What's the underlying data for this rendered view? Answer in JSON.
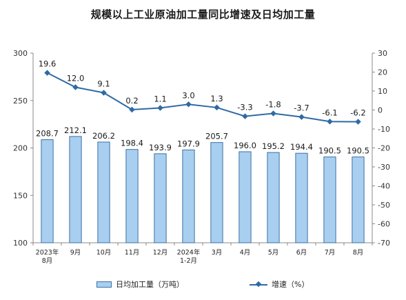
{
  "chart_data": {
    "type": "bar+line",
    "title": "规模以上工业原油加工量同比增速及日均加工量",
    "categories": [
      "2023年\n8月",
      "9月",
      "10月",
      "11月",
      "12月",
      "2024年\n1-2月",
      "3月",
      "4月",
      "5月",
      "6月",
      "7月",
      "8月"
    ],
    "series": [
      {
        "name": "日均加工量（万吨）",
        "type": "bar",
        "axis": "left",
        "values": [
          208.7,
          212.1,
          206.2,
          198.4,
          193.9,
          197.9,
          205.7,
          196.0,
          195.2,
          194.4,
          190.5,
          190.5
        ],
        "labels": [
          "208.7",
          "212.1",
          "206.2",
          "198.4",
          "193.9",
          "197.9",
          "205.7",
          "196.0",
          "195.2",
          "194.4",
          "190.5",
          "190.5"
        ],
        "color": "#a8cff0",
        "border": "#3b6fa3"
      },
      {
        "name": "增速（%）",
        "type": "line",
        "axis": "right",
        "values": [
          19.6,
          12.0,
          9.1,
          0.2,
          1.1,
          3.0,
          1.3,
          -3.3,
          -1.8,
          -3.7,
          -6.1,
          -6.2
        ],
        "labels": [
          "19.6",
          "12.0",
          "9.1",
          "0.2",
          "1.1",
          "3.0",
          "1.3",
          "-3.3",
          "-1.8",
          "-3.7",
          "-6.1",
          "-6.2"
        ],
        "color": "#2e6aa5"
      }
    ],
    "left_axis": {
      "ylim": [
        100,
        300
      ],
      "ticks": [
        100,
        150,
        200,
        250,
        300
      ]
    },
    "right_axis": {
      "ylim": [
        -70,
        30
      ],
      "ticks": [
        30,
        20,
        10,
        0,
        -10,
        -20,
        -30,
        -40,
        -50,
        -60,
        -70
      ]
    },
    "grid": false,
    "legend_position": "bottom"
  },
  "legend": {
    "bar_label": "日均加工量（万吨）",
    "line_label": "增速（%）"
  }
}
